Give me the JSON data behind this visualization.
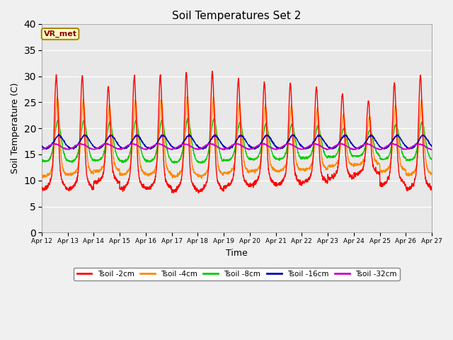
{
  "title": "Soil Temperatures Set 2",
  "xlabel": "Time",
  "ylabel": "Soil Temperature (C)",
  "ylim": [
    0,
    40
  ],
  "yticks": [
    0,
    5,
    10,
    15,
    20,
    25,
    30,
    35,
    40
  ],
  "x_labels": [
    "Apr 12",
    "Apr 13",
    "Apr 14",
    "Apr 15",
    "Apr 16",
    "Apr 17",
    "Apr 18",
    "Apr 19",
    "Apr 20",
    "Apr 21",
    "Apr 22",
    "Apr 23",
    "Apr 24",
    "Apr 25",
    "Apr 26",
    "Apr 27"
  ],
  "annotation": "VR_met",
  "bg_color": "#e8e8e8",
  "fig_bg_color": "#f0f0f0",
  "line_colors": {
    "2cm": "#ff0000",
    "4cm": "#ff8800",
    "8cm": "#00cc00",
    "16cm": "#0000bb",
    "32cm": "#cc00cc"
  },
  "legend_labels": [
    "Tsoil -2cm",
    "Tsoil -4cm",
    "Tsoil -8cm",
    "Tsoil -16cm",
    "Tsoil -32cm"
  ]
}
